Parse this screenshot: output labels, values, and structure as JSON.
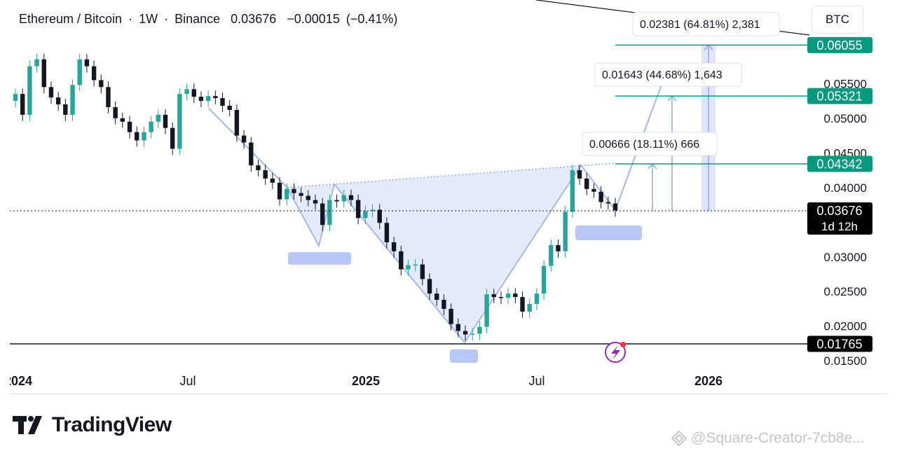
{
  "header": {
    "symbol": "Ethereum / Bitcoin",
    "interval": "1W",
    "exchange": "Binance",
    "last": "0.03676",
    "change": "−0.00015",
    "change_pct": "(−0.41%)",
    "unit": "BTC"
  },
  "branding": {
    "logo_text": "TradingView"
  },
  "watermark": "@Square-Creator-7cb8e...",
  "chart_data": {
    "type": "candlestick",
    "timeframe": "1W",
    "up_color": "#26a69a",
    "down_color": "#131722",
    "pattern_color": "#a4b8ef",
    "target_color": "#089981",
    "x_ticks": [
      "2024",
      "Jul",
      "2025",
      "Jul",
      "2026"
    ],
    "y_ticks": [
      "0.05500",
      "0.05000",
      "0.04500",
      "0.04000",
      "0.03000",
      "0.02500",
      "0.02000",
      "0.01500"
    ],
    "ylim": [
      0.0148,
      0.0625
    ],
    "close_series": [
      0.0535,
      0.0505,
      0.0575,
      0.0585,
      0.0545,
      0.053,
      0.052,
      0.0505,
      0.0548,
      0.0585,
      0.0575,
      0.0555,
      0.0545,
      0.0516,
      0.05,
      0.0495,
      0.048,
      0.0468,
      0.048,
      0.0495,
      0.0505,
      0.0486,
      0.0456,
      0.0535,
      0.0542,
      0.0531,
      0.0525,
      0.0532,
      0.0529,
      0.0518,
      0.0512,
      0.0475,
      0.0465,
      0.0432,
      0.0425,
      0.0413,
      0.0407,
      0.0383,
      0.0398,
      0.0392,
      0.0388,
      0.0382,
      0.0377,
      0.0346,
      0.0382,
      0.038,
      0.0389,
      0.0382,
      0.0356,
      0.0366,
      0.0368,
      0.0349,
      0.0321,
      0.0308,
      0.0282,
      0.0288,
      0.0289,
      0.0268,
      0.0247,
      0.0238,
      0.0225,
      0.0203,
      0.0193,
      0.0188,
      0.0189,
      0.0199,
      0.0246,
      0.0242,
      0.0241,
      0.0247,
      0.0242,
      0.0221,
      0.0232,
      0.0247,
      0.0287,
      0.0317,
      0.0308,
      0.0365,
      0.0425,
      0.0413,
      0.0398,
      0.0394,
      0.0379,
      0.0377,
      0.0367
    ],
    "annotations": {
      "neckline_label": "",
      "targets": [
        {
          "label": "0.00666 (18.11%) 666",
          "price": 0.04342
        },
        {
          "label": "0.01643 (44.68%) 1,643",
          "price": 0.05321
        },
        {
          "label": "0.02381 (64.81%) 2,381",
          "price": 0.06055
        }
      ],
      "support": 0.01765
    },
    "price_labels": [
      {
        "value": "0.06055",
        "kind": "target"
      },
      {
        "value": "0.05321",
        "kind": "target"
      },
      {
        "value": "0.04342",
        "kind": "target"
      },
      {
        "value": "0.03676",
        "kind": "last",
        "countdown": "1d 12h"
      },
      {
        "value": "0.01765",
        "kind": "support"
      }
    ]
  }
}
